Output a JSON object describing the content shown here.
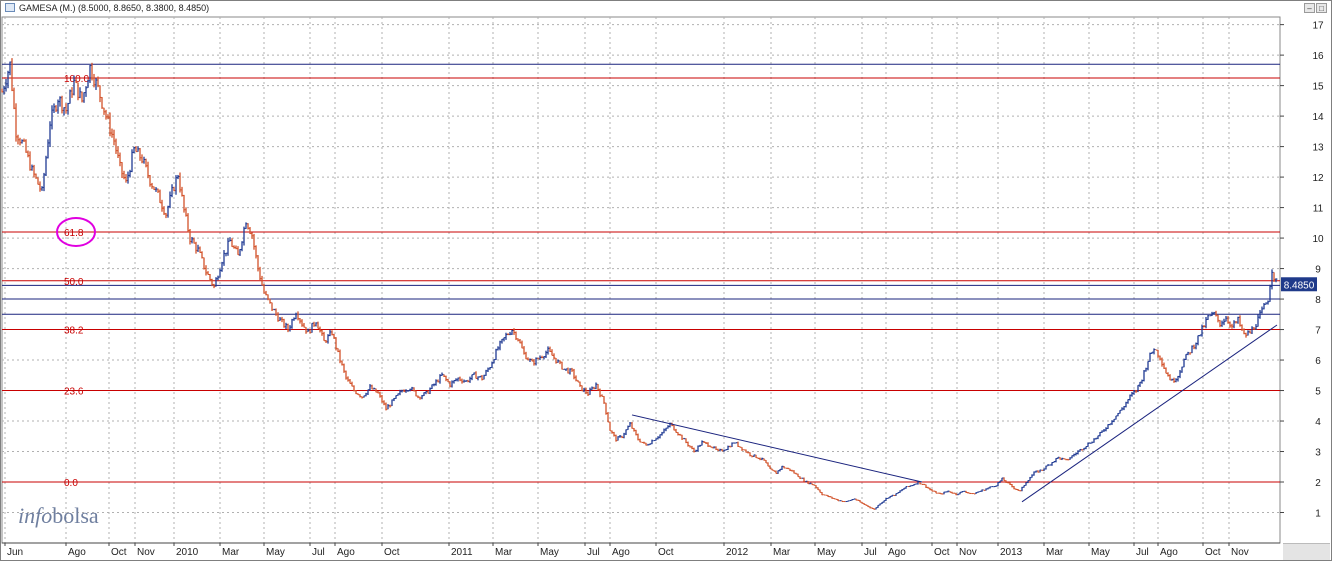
{
  "window": {
    "title": "GAMESA (M.) (8.5000, 8.8650, 8.3800, 8.4850)",
    "buttons": [
      "–",
      "□"
    ]
  },
  "colors": {
    "up_bar": "#1f3a93",
    "down_bar": "#d2522a",
    "fib_line": "#c80000",
    "trend_line": "#1a237e",
    "grid": "#b0b0b0",
    "price_tag_bg": "#1f3a8a",
    "highlight_circle": "#e000e0",
    "watermark": "#6f7f9f"
  },
  "watermark": {
    "part1": "info",
    "part2": "bolsa"
  },
  "chart_data": {
    "type": "line",
    "chart_style": "ohlc-bars",
    "title": "GAMESA (M.) (8.5000, 8.8650, 8.3800, 8.4850)",
    "xlabel": "",
    "ylabel": "",
    "ylim": [
      0,
      17.25
    ],
    "y_ticks": [
      1,
      2,
      3,
      4,
      5,
      6,
      7,
      8,
      9,
      10,
      11,
      12,
      13,
      14,
      15,
      16,
      17
    ],
    "grid": true,
    "legend": "none",
    "last_price": 8.485,
    "last_price_label": "8.4850",
    "x_ticks": [
      {
        "label": "Jun",
        "t": 3
      },
      {
        "label": "Ago",
        "t": 64
      },
      {
        "label": "Oct",
        "t": 107
      },
      {
        "label": "Nov",
        "t": 133
      },
      {
        "label": "2010",
        "t": 172
      },
      {
        "label": "Mar",
        "t": 218
      },
      {
        "label": "May",
        "t": 262
      },
      {
        "label": "Jul",
        "t": 308
      },
      {
        "label": "Ago",
        "t": 333
      },
      {
        "label": "Oct",
        "t": 380
      },
      {
        "label": "2011",
        "t": 447
      },
      {
        "label": "Mar",
        "t": 491
      },
      {
        "label": "May",
        "t": 536
      },
      {
        "label": "Jul",
        "t": 583
      },
      {
        "label": "Ago",
        "t": 608
      },
      {
        "label": "Oct",
        "t": 654
      },
      {
        "label": "2012",
        "t": 722
      },
      {
        "label": "Mar",
        "t": 769
      },
      {
        "label": "May",
        "t": 813
      },
      {
        "label": "Jul",
        "t": 860
      },
      {
        "label": "Ago",
        "t": 884
      },
      {
        "label": "Oct",
        "t": 930
      },
      {
        "label": "Nov",
        "t": 955
      },
      {
        "label": "2013",
        "t": 996
      },
      {
        "label": "Mar",
        "t": 1042
      },
      {
        "label": "May",
        "t": 1087
      },
      {
        "label": "Jul",
        "t": 1132
      },
      {
        "label": "Ago",
        "t": 1156
      },
      {
        "label": "Oct",
        "t": 1201
      },
      {
        "label": "Nov",
        "t": 1227
      }
    ],
    "price_path": [
      [
        0,
        14.8
      ],
      [
        8,
        15.7
      ],
      [
        14,
        13.5
      ],
      [
        22,
        13.0
      ],
      [
        30,
        12.2
      ],
      [
        40,
        11.5
      ],
      [
        48,
        13.8
      ],
      [
        56,
        14.6
      ],
      [
        64,
        14.2
      ],
      [
        72,
        15.1
      ],
      [
        80,
        14.5
      ],
      [
        88,
        15.6
      ],
      [
        96,
        14.9
      ],
      [
        104,
        14.0
      ],
      [
        112,
        13.2
      ],
      [
        118,
        12.3
      ],
      [
        124,
        11.8
      ],
      [
        132,
        12.9
      ],
      [
        140,
        12.6
      ],
      [
        148,
        11.9
      ],
      [
        156,
        11.4
      ],
      [
        164,
        10.8
      ],
      [
        170,
        11.5
      ],
      [
        176,
        12.1
      ],
      [
        182,
        10.9
      ],
      [
        188,
        10.0
      ],
      [
        196,
        9.6
      ],
      [
        204,
        8.9
      ],
      [
        212,
        8.4
      ],
      [
        220,
        9.3
      ],
      [
        228,
        9.9
      ],
      [
        236,
        9.4
      ],
      [
        244,
        10.6
      ],
      [
        250,
        10.1
      ],
      [
        256,
        9.0
      ],
      [
        262,
        8.2
      ],
      [
        270,
        7.7
      ],
      [
        278,
        7.3
      ],
      [
        286,
        7.0
      ],
      [
        294,
        7.6
      ],
      [
        300,
        7.2
      ],
      [
        306,
        6.9
      ],
      [
        314,
        7.3
      ],
      [
        322,
        6.6
      ],
      [
        330,
        6.9
      ],
      [
        336,
        6.2
      ],
      [
        344,
        5.4
      ],
      [
        352,
        5.0
      ],
      [
        360,
        4.8
      ],
      [
        368,
        5.1
      ],
      [
        376,
        4.9
      ],
      [
        384,
        4.4
      ],
      [
        392,
        4.7
      ],
      [
        400,
        5.0
      ],
      [
        408,
        5.1
      ],
      [
        416,
        4.8
      ],
      [
        424,
        4.9
      ],
      [
        432,
        5.2
      ],
      [
        440,
        5.5
      ],
      [
        448,
        5.2
      ],
      [
        456,
        5.4
      ],
      [
        464,
        5.3
      ],
      [
        472,
        5.5
      ],
      [
        480,
        5.4
      ],
      [
        488,
        5.8
      ],
      [
        496,
        6.4
      ],
      [
        504,
        6.8
      ],
      [
        510,
        7.0
      ],
      [
        516,
        6.7
      ],
      [
        522,
        6.2
      ],
      [
        530,
        5.9
      ],
      [
        538,
        6.1
      ],
      [
        546,
        6.3
      ],
      [
        554,
        6.0
      ],
      [
        562,
        5.7
      ],
      [
        570,
        5.6
      ],
      [
        578,
        5.1
      ],
      [
        586,
        4.9
      ],
      [
        594,
        5.2
      ],
      [
        602,
        4.6
      ],
      [
        608,
        3.7
      ],
      [
        614,
        3.4
      ],
      [
        620,
        3.5
      ],
      [
        628,
        3.9
      ],
      [
        636,
        3.4
      ],
      [
        644,
        3.2
      ],
      [
        652,
        3.4
      ],
      [
        660,
        3.6
      ],
      [
        668,
        3.9
      ],
      [
        676,
        3.6
      ],
      [
        684,
        3.3
      ],
      [
        692,
        3.0
      ],
      [
        700,
        3.3
      ],
      [
        708,
        3.2
      ],
      [
        716,
        3.0
      ],
      [
        724,
        3.1
      ],
      [
        732,
        3.3
      ],
      [
        740,
        3.1
      ],
      [
        748,
        2.9
      ],
      [
        756,
        2.8
      ],
      [
        762,
        2.7
      ],
      [
        768,
        2.4
      ],
      [
        774,
        2.3
      ],
      [
        780,
        2.5
      ],
      [
        788,
        2.4
      ],
      [
        796,
        2.2
      ],
      [
        804,
        2.0
      ],
      [
        812,
        1.9
      ],
      [
        820,
        1.6
      ],
      [
        828,
        1.5
      ],
      [
        836,
        1.4
      ],
      [
        844,
        1.35
      ],
      [
        852,
        1.45
      ],
      [
        860,
        1.3
      ],
      [
        866,
        1.2
      ],
      [
        872,
        1.1
      ],
      [
        878,
        1.3
      ],
      [
        886,
        1.5
      ],
      [
        894,
        1.6
      ],
      [
        902,
        1.8
      ],
      [
        910,
        1.9
      ],
      [
        916,
        2.0
      ],
      [
        922,
        1.9
      ],
      [
        930,
        1.7
      ],
      [
        938,
        1.6
      ],
      [
        946,
        1.7
      ],
      [
        954,
        1.6
      ],
      [
        962,
        1.7
      ],
      [
        970,
        1.6
      ],
      [
        978,
        1.7
      ],
      [
        986,
        1.8
      ],
      [
        994,
        1.9
      ],
      [
        1000,
        2.1
      ],
      [
        1006,
        1.95
      ],
      [
        1012,
        1.8
      ],
      [
        1018,
        1.7
      ],
      [
        1024,
        2.0
      ],
      [
        1032,
        2.3
      ],
      [
        1040,
        2.4
      ],
      [
        1048,
        2.6
      ],
      [
        1056,
        2.8
      ],
      [
        1064,
        2.7
      ],
      [
        1072,
        2.9
      ],
      [
        1080,
        3.1
      ],
      [
        1088,
        3.3
      ],
      [
        1096,
        3.5
      ],
      [
        1104,
        3.8
      ],
      [
        1112,
        4.1
      ],
      [
        1120,
        4.4
      ],
      [
        1128,
        4.8
      ],
      [
        1134,
        5.0
      ],
      [
        1140,
        5.4
      ],
      [
        1146,
        6.0
      ],
      [
        1152,
        6.4
      ],
      [
        1158,
        6.1
      ],
      [
        1164,
        5.6
      ],
      [
        1170,
        5.3
      ],
      [
        1176,
        5.5
      ],
      [
        1182,
        6.0
      ],
      [
        1188,
        6.3
      ],
      [
        1194,
        6.6
      ],
      [
        1200,
        7.0
      ],
      [
        1206,
        7.4
      ],
      [
        1212,
        7.5
      ],
      [
        1218,
        7.2
      ],
      [
        1224,
        7.4
      ],
      [
        1230,
        7.1
      ],
      [
        1236,
        7.3
      ],
      [
        1242,
        6.8
      ],
      [
        1248,
        6.9
      ],
      [
        1254,
        7.2
      ],
      [
        1260,
        7.6
      ],
      [
        1266,
        8.0
      ],
      [
        1270,
        9.0
      ],
      [
        1273,
        8.6
      ],
      [
        1275,
        8.485
      ]
    ],
    "fibonacci_levels": [
      {
        "label": "100.0",
        "price": 15.25
      },
      {
        "label": "61.8",
        "price": 10.2,
        "highlighted": true
      },
      {
        "label": "50.0",
        "price": 8.6
      },
      {
        "label": "38.2",
        "price": 7.0
      },
      {
        "label": "23.6",
        "price": 5.0
      },
      {
        "label": "0.0",
        "price": 2.0
      }
    ],
    "horizontal_lines": [
      15.7,
      8.45,
      8.0,
      7.5
    ],
    "trend_lines": [
      {
        "from": [
          630,
          4.2
        ],
        "to": [
          920,
          2.0
        ]
      },
      {
        "from": [
          1020,
          1.35
        ],
        "to": [
          1275,
          7.15
        ]
      }
    ]
  }
}
